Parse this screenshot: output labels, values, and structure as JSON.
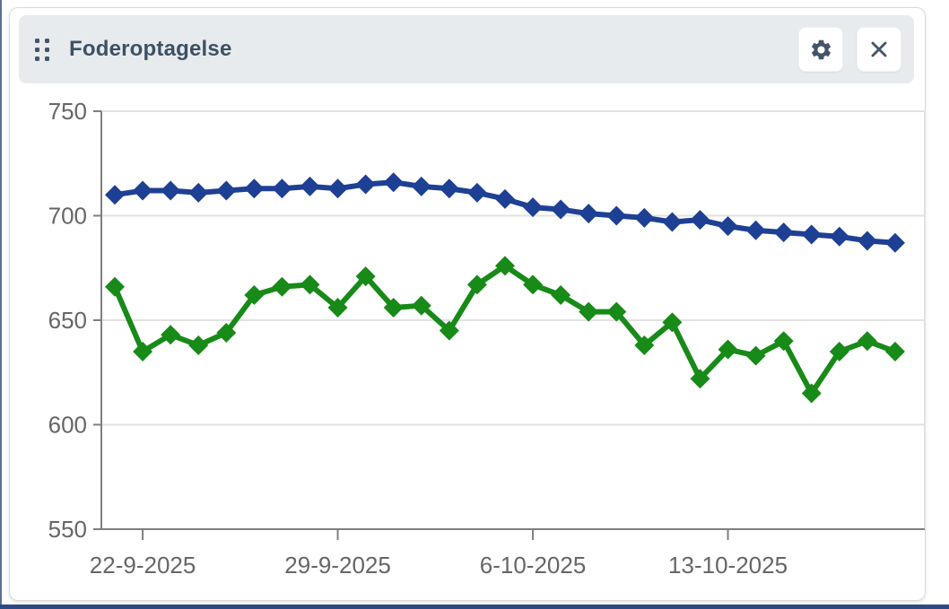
{
  "header": {
    "title": "Foderoptagelse",
    "settings_icon": "gear",
    "close_icon": "x",
    "drag_handle_icon": "grip-dots"
  },
  "colors": {
    "series_blue": "#1e4094",
    "series_green": "#178a17",
    "header_bg": "#e8ebee",
    "title_color": "#3c5164",
    "icon_color": "#44546a",
    "axis_color": "#7f7f7f",
    "grid_color": "#e2e2e2",
    "tick_label_color": "#666666",
    "card_border": "#d8dadc",
    "button_bg": "#ffffff",
    "frame_left": "#5c6f93",
    "frame_bottom": "#2c4a84"
  },
  "chart_data": {
    "type": "line",
    "title": "Foderoptagelse",
    "marker": "diamond",
    "grid": "horizontal",
    "legend": "none",
    "ylim": [
      550,
      750
    ],
    "y_ticks": [
      550,
      600,
      650,
      700,
      750
    ],
    "x_tick_labels": [
      "22-9-2025",
      "29-9-2025",
      "6-10-2025",
      "13-10-2025"
    ],
    "x_tick_indices": [
      1,
      8,
      15,
      22
    ],
    "x": [
      "21-9-2025",
      "22-9-2025",
      "23-9-2025",
      "24-9-2025",
      "25-9-2025",
      "26-9-2025",
      "27-9-2025",
      "28-9-2025",
      "29-9-2025",
      "30-9-2025",
      "1-10-2025",
      "2-10-2025",
      "3-10-2025",
      "4-10-2025",
      "5-10-2025",
      "6-10-2025",
      "7-10-2025",
      "8-10-2025",
      "9-10-2025",
      "10-10-2025",
      "11-10-2025",
      "12-10-2025",
      "13-10-2025",
      "14-10-2025",
      "15-10-2025",
      "16-10-2025",
      "17-10-2025",
      "18-10-2025",
      "19-10-2025"
    ],
    "series": [
      {
        "name": "series-blue",
        "color": "#1e4094",
        "values": [
          710,
          712,
          712,
          711,
          712,
          713,
          713,
          714,
          713,
          715,
          716,
          714,
          713,
          711,
          708,
          704,
          703,
          701,
          700,
          699,
          697,
          698,
          695,
          693,
          692,
          691,
          690,
          688,
          687
        ]
      },
      {
        "name": "series-green",
        "color": "#178a17",
        "values": [
          666,
          635,
          643,
          638,
          644,
          662,
          666,
          667,
          656,
          671,
          656,
          657,
          645,
          667,
          676,
          667,
          662,
          654,
          654,
          638,
          649,
          622,
          636,
          633,
          640,
          615,
          635,
          640,
          635
        ]
      }
    ]
  }
}
